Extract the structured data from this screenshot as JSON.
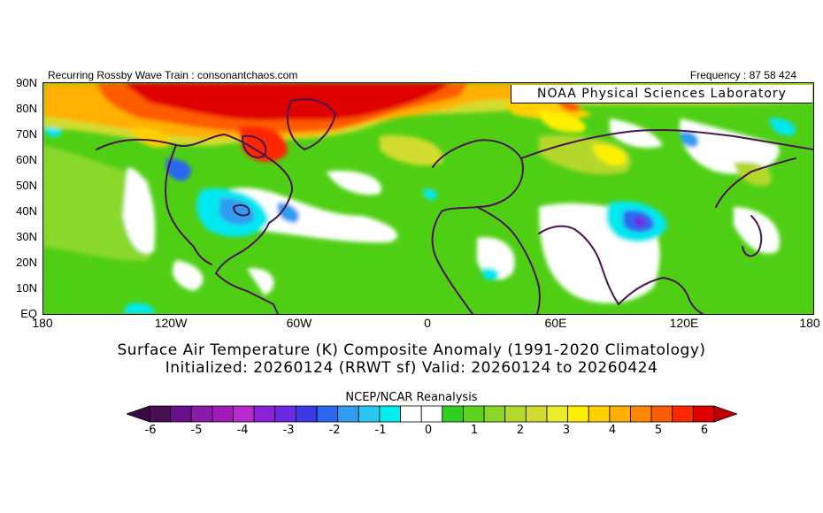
{
  "header": {
    "left_text": "Recurring Rossby Wave Train : consonantchaos.com",
    "right_text": "Frequency : 87 58 424",
    "lab_label": "NOAA Physical Sciences Laboratory"
  },
  "map": {
    "lat_labels": [
      "90N",
      "80N",
      "70N",
      "60N",
      "50N",
      "40N",
      "30N",
      "20N",
      "10N",
      "EQ"
    ],
    "lon_labels": [
      "180",
      "120W",
      "60W",
      "0",
      "60E",
      "120E",
      "180"
    ],
    "colors": {
      "background_anomaly": "#4fcf14",
      "neutral": "#ffffff",
      "coast": "#4b1650"
    }
  },
  "title_line1": "Surface Air Temperature (K) Composite Anomaly (1991-2020 Climatology)",
  "title_line2": "Initialized: 20260124 (RRWT sf) Valid: 20260124 to 20260424",
  "colorbar": {
    "title": "NCEP/NCAR Reanalysis",
    "tick_labels": [
      "-6",
      "-5",
      "-4",
      "-3",
      "-2",
      "-1",
      "0",
      "1",
      "2",
      "3",
      "4",
      "5",
      "6"
    ],
    "colors": [
      "#4a0e52",
      "#6a0f8a",
      "#8a1aa8",
      "#a21ab8",
      "#b82ad0",
      "#8c22d8",
      "#6a2ae0",
      "#3c38e8",
      "#2a66f0",
      "#2f9cf0",
      "#28c8f0",
      "#00f0f0",
      "#ffffff",
      "#ffffff",
      "#30d020",
      "#5cd41e",
      "#8cd828",
      "#b4d82c",
      "#d2dc2e",
      "#ecec2a",
      "#fff000",
      "#ffd000",
      "#ffb000",
      "#ff8800",
      "#ff5c00",
      "#ff2800",
      "#e00000"
    ]
  }
}
